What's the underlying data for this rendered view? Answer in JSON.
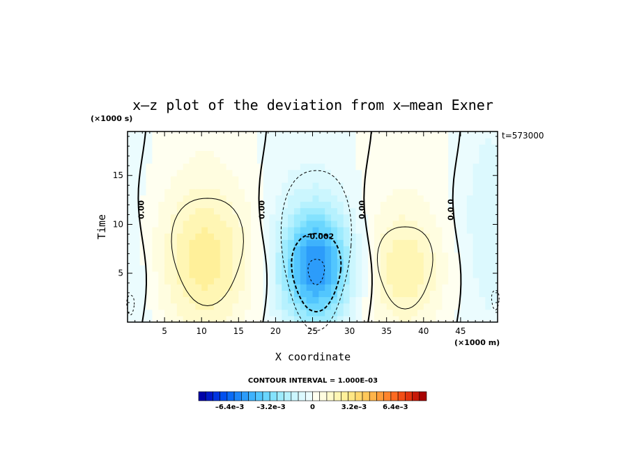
{
  "chart_data": {
    "type": "heatmap",
    "title": "x–z plot of the deviation from x–mean Exner",
    "xlabel": "X coordinate",
    "ylabel": "Time",
    "x_unit": "(×1000 m)",
    "y_unit": "(×1000 s)",
    "time_label": "t=573000",
    "xlim": [
      0,
      50
    ],
    "ylim": [
      0,
      19.5
    ],
    "x_ticks": [
      5,
      10,
      15,
      20,
      25,
      30,
      35,
      40,
      45
    ],
    "y_ticks": [
      5,
      10,
      15
    ],
    "contour_interval_text": "CONTOUR INTERVAL = 1.000E–03",
    "contour_labels": [
      {
        "text": "0.00",
        "x": 2.2,
        "y": 11.5
      },
      {
        "text": "0.00",
        "x": 18.5,
        "y": 11.5
      },
      {
        "text": "–0.002",
        "x": 26.0,
        "y": 8.5
      },
      {
        "text": "0.00",
        "x": 32.0,
        "y": 11.5
      },
      {
        "text": "0.0 0",
        "x": 44.0,
        "y": 11.5
      }
    ],
    "anomalies": [
      {
        "x": 10.5,
        "y": 6.5,
        "sx": 4.5,
        "sy": 5.0,
        "amp": 0.0022
      },
      {
        "x": 25.5,
        "y": 5.8,
        "sx": 3.4,
        "sy": 4.2,
        "amp": -0.0052
      },
      {
        "x": 37.5,
        "y": 5.5,
        "sx": 3.6,
        "sy": 4.0,
        "amp": 0.0018
      },
      {
        "x": 48.5,
        "y": 10.0,
        "sx": 2.5,
        "sy": 6.0,
        "amp": -0.0006
      },
      {
        "x": 1.0,
        "y": 3.0,
        "sx": 2.0,
        "sy": 3.0,
        "amp": -0.0004
      }
    ],
    "colorbar": {
      "min": -0.0088,
      "max": 0.0088,
      "tick_labels": [
        "–6.4e–3",
        "–3.2e–3",
        "0",
        "3.2e–3",
        "6.4e–3"
      ],
      "tick_values": [
        -0.0064,
        -0.0032,
        0,
        0.0032,
        0.0064
      ],
      "colors": [
        "#0000a8",
        "#0018c8",
        "#0034e0",
        "#0050ee",
        "#0a6cf6",
        "#1c86f8",
        "#2c9cfa",
        "#3eb2fc",
        "#52c6fe",
        "#6ad6fe",
        "#84e2fe",
        "#9eebfe",
        "#b6f1fe",
        "#cbf6fe",
        "#dcf9fe",
        "#ebfcfe",
        "#fffff0",
        "#fffde0",
        "#fffacc",
        "#fff6b4",
        "#fff09a",
        "#ffe684",
        "#ffd86e",
        "#ffc85a",
        "#ffb44a",
        "#ff9c3a",
        "#ff842c",
        "#fc6a20",
        "#f24e16",
        "#e2340e",
        "#c81a08",
        "#a80404"
      ]
    }
  }
}
